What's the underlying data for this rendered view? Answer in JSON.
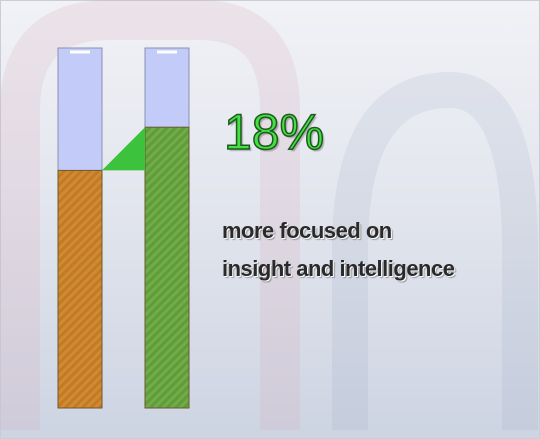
{
  "chart_data": {
    "type": "bar",
    "categories": [
      null,
      null
    ],
    "values": [
      66,
      78
    ],
    "colors": [
      "#c67a1e",
      "#5e9e34"
    ],
    "ylim": [
      0,
      100
    ],
    "headline": "18%",
    "text": "more focused on insight and intelligence"
  }
}
